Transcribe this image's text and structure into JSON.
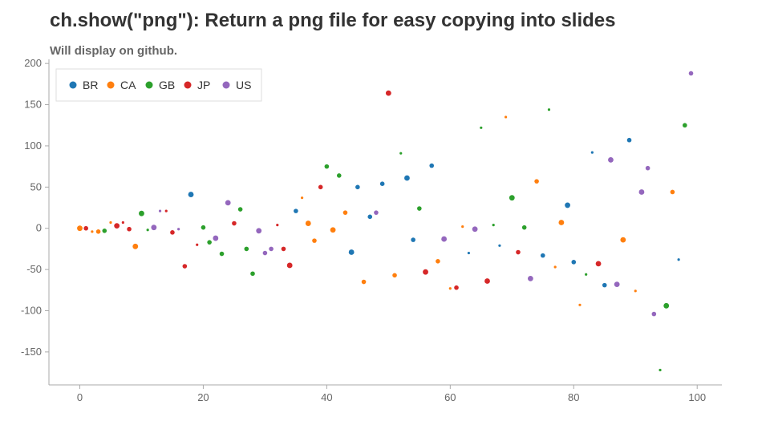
{
  "header": {
    "title": "ch.show(\"png\"): Return a png file for easy copying into slides",
    "subtitle": "Will display on github."
  },
  "chart_data": {
    "type": "scatter",
    "title": "ch.show(\"png\"): Return a png file for easy copying into slides",
    "subtitle": "Will display on github.",
    "xlabel": "",
    "ylabel": "",
    "xlim": [
      -5,
      104
    ],
    "ylim": [
      -190,
      205
    ],
    "x_ticks": [
      0,
      20,
      40,
      60,
      80,
      100
    ],
    "y_ticks": [
      200,
      150,
      100,
      50,
      0,
      -50,
      -100,
      -150
    ],
    "grid": false,
    "legend_position": "top-left",
    "series": [
      {
        "name": "BR",
        "color": "#1f77b4",
        "points": [
          {
            "x": 18,
            "y": 41,
            "s": 5
          },
          {
            "x": 35,
            "y": 21,
            "s": 4
          },
          {
            "x": 44,
            "y": -29,
            "s": 5
          },
          {
            "x": 45,
            "y": 50,
            "s": 4
          },
          {
            "x": 47,
            "y": 14,
            "s": 4
          },
          {
            "x": 49,
            "y": 54,
            "s": 4
          },
          {
            "x": 53,
            "y": 61,
            "s": 5
          },
          {
            "x": 54,
            "y": -14,
            "s": 4
          },
          {
            "x": 57,
            "y": 76,
            "s": 4
          },
          {
            "x": 63,
            "y": -30,
            "s": 2
          },
          {
            "x": 68,
            "y": -21,
            "s": 2
          },
          {
            "x": 75,
            "y": -33,
            "s": 4
          },
          {
            "x": 79,
            "y": 28,
            "s": 5
          },
          {
            "x": 80,
            "y": -41,
            "s": 4
          },
          {
            "x": 83,
            "y": 92,
            "s": 2
          },
          {
            "x": 85,
            "y": -69,
            "s": 4
          },
          {
            "x": 89,
            "y": 107,
            "s": 4
          },
          {
            "x": 97,
            "y": -38,
            "s": 2
          }
        ]
      },
      {
        "name": "CA",
        "color": "#ff7f0e",
        "points": [
          {
            "x": 0,
            "y": 0,
            "s": 5
          },
          {
            "x": 2,
            "y": -4,
            "s": 2
          },
          {
            "x": 3,
            "y": -4,
            "s": 4
          },
          {
            "x": 5,
            "y": 7,
            "s": 2
          },
          {
            "x": 9,
            "y": -22,
            "s": 5
          },
          {
            "x": 36,
            "y": 37,
            "s": 2
          },
          {
            "x": 37,
            "y": 6,
            "s": 5
          },
          {
            "x": 38,
            "y": -15,
            "s": 4
          },
          {
            "x": 41,
            "y": -2,
            "s": 5
          },
          {
            "x": 43,
            "y": 19,
            "s": 4
          },
          {
            "x": 46,
            "y": -65,
            "s": 4
          },
          {
            "x": 51,
            "y": -57,
            "s": 4
          },
          {
            "x": 58,
            "y": -40,
            "s": 4
          },
          {
            "x": 60,
            "y": -73,
            "s": 2
          },
          {
            "x": 62,
            "y": 2,
            "s": 2
          },
          {
            "x": 69,
            "y": 135,
            "s": 2
          },
          {
            "x": 74,
            "y": 57,
            "s": 4
          },
          {
            "x": 77,
            "y": -47,
            "s": 2
          },
          {
            "x": 78,
            "y": 7,
            "s": 5
          },
          {
            "x": 81,
            "y": -93,
            "s": 2
          },
          {
            "x": 88,
            "y": -14,
            "s": 5
          },
          {
            "x": 90,
            "y": -76,
            "s": 2
          },
          {
            "x": 96,
            "y": 44,
            "s": 4
          }
        ]
      },
      {
        "name": "GB",
        "color": "#2ca02c",
        "points": [
          {
            "x": 4,
            "y": -3,
            "s": 4
          },
          {
            "x": 10,
            "y": 18,
            "s": 5
          },
          {
            "x": 11,
            "y": -2,
            "s": 2
          },
          {
            "x": 20,
            "y": 1,
            "s": 4
          },
          {
            "x": 21,
            "y": -17,
            "s": 4
          },
          {
            "x": 23,
            "y": -31,
            "s": 4
          },
          {
            "x": 26,
            "y": 23,
            "s": 4
          },
          {
            "x": 27,
            "y": -25,
            "s": 4
          },
          {
            "x": 28,
            "y": -55,
            "s": 4
          },
          {
            "x": 40,
            "y": 75,
            "s": 4
          },
          {
            "x": 42,
            "y": 64,
            "s": 4
          },
          {
            "x": 52,
            "y": 91,
            "s": 2
          },
          {
            "x": 55,
            "y": 24,
            "s": 4
          },
          {
            "x": 65,
            "y": 122,
            "s": 2
          },
          {
            "x": 67,
            "y": 4,
            "s": 2
          },
          {
            "x": 70,
            "y": 37,
            "s": 5
          },
          {
            "x": 72,
            "y": 1,
            "s": 4
          },
          {
            "x": 76,
            "y": 144,
            "s": 2
          },
          {
            "x": 82,
            "y": -56,
            "s": 2
          },
          {
            "x": 94,
            "y": -172,
            "s": 2
          },
          {
            "x": 95,
            "y": -94,
            "s": 5
          },
          {
            "x": 98,
            "y": 125,
            "s": 4
          }
        ]
      },
      {
        "name": "JP",
        "color": "#d62728",
        "points": [
          {
            "x": 1,
            "y": 0,
            "s": 4
          },
          {
            "x": 6,
            "y": 3,
            "s": 5
          },
          {
            "x": 7,
            "y": 7,
            "s": 2
          },
          {
            "x": 8,
            "y": -1,
            "s": 4
          },
          {
            "x": 14,
            "y": 21,
            "s": 2
          },
          {
            "x": 15,
            "y": -5,
            "s": 4
          },
          {
            "x": 17,
            "y": -46,
            "s": 4
          },
          {
            "x": 19,
            "y": -20,
            "s": 2
          },
          {
            "x": 25,
            "y": 6,
            "s": 4
          },
          {
            "x": 32,
            "y": 4,
            "s": 2
          },
          {
            "x": 33,
            "y": -25,
            "s": 4
          },
          {
            "x": 34,
            "y": -45,
            "s": 5
          },
          {
            "x": 39,
            "y": 50,
            "s": 4
          },
          {
            "x": 50,
            "y": 164,
            "s": 5
          },
          {
            "x": 56,
            "y": -53,
            "s": 5
          },
          {
            "x": 61,
            "y": -72,
            "s": 4
          },
          {
            "x": 66,
            "y": -64,
            "s": 5
          },
          {
            "x": 71,
            "y": -29,
            "s": 4
          },
          {
            "x": 84,
            "y": -43,
            "s": 5
          }
        ]
      },
      {
        "name": "US",
        "color": "#9467bd",
        "points": [
          {
            "x": 12,
            "y": 1,
            "s": 5
          },
          {
            "x": 13,
            "y": 21,
            "s": 2
          },
          {
            "x": 16,
            "y": -1,
            "s": 2
          },
          {
            "x": 22,
            "y": -12,
            "s": 5
          },
          {
            "x": 24,
            "y": 31,
            "s": 5
          },
          {
            "x": 29,
            "y": -3,
            "s": 5
          },
          {
            "x": 30,
            "y": -30,
            "s": 4
          },
          {
            "x": 31,
            "y": -25,
            "s": 4
          },
          {
            "x": 48,
            "y": 19,
            "s": 4
          },
          {
            "x": 59,
            "y": -13,
            "s": 5
          },
          {
            "x": 64,
            "y": -1,
            "s": 5
          },
          {
            "x": 73,
            "y": -61,
            "s": 5
          },
          {
            "x": 86,
            "y": 83,
            "s": 5
          },
          {
            "x": 87,
            "y": -68,
            "s": 5
          },
          {
            "x": 91,
            "y": 44,
            "s": 5
          },
          {
            "x": 92,
            "y": 73,
            "s": 4
          },
          {
            "x": 93,
            "y": -104,
            "s": 4
          },
          {
            "x": 99,
            "y": 188,
            "s": 4
          }
        ]
      }
    ]
  }
}
